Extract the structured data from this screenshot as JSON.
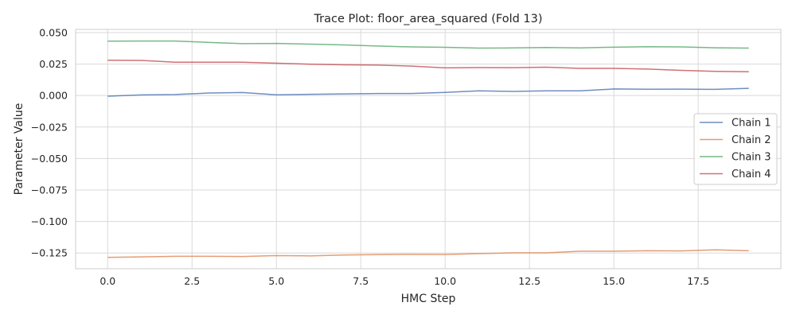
{
  "chart_data": {
    "type": "line",
    "title": "Trace Plot: floor_area_squared (Fold 13)",
    "xlabel": "HMC Step",
    "ylabel": "Parameter Value",
    "xlim": [
      -0.95,
      19.95
    ],
    "ylim": [
      -0.1375,
      0.0525
    ],
    "xticks": [
      0.0,
      2.5,
      5.0,
      7.5,
      10.0,
      12.5,
      15.0,
      17.5
    ],
    "xtick_labels": [
      "0.0",
      "2.5",
      "5.0",
      "7.5",
      "10.0",
      "12.5",
      "15.0",
      "17.5"
    ],
    "yticks": [
      0.05,
      0.025,
      0.0,
      -0.025,
      -0.05,
      -0.075,
      -0.1,
      -0.125
    ],
    "ytick_labels": [
      "0.050",
      "0.025",
      "0.000",
      "−0.025",
      "−0.050",
      "−0.075",
      "−0.100",
      "−0.125"
    ],
    "grid": true,
    "legend_position": "center-right",
    "x": [
      0,
      1,
      2,
      3,
      4,
      5,
      6,
      7,
      8,
      9,
      10,
      11,
      12,
      13,
      14,
      15,
      16,
      17,
      18,
      19
    ],
    "series": [
      {
        "name": "Chain 1",
        "color": "#4c72b0",
        "values": [
          -0.0005,
          0.0005,
          0.0008,
          0.002,
          0.0024,
          0.0006,
          0.001,
          0.0013,
          0.0016,
          0.0016,
          0.0025,
          0.0037,
          0.0033,
          0.0037,
          0.0037,
          0.0052,
          0.005,
          0.0051,
          0.0049,
          0.0057
        ]
      },
      {
        "name": "Chain 2",
        "color": "#dd8452",
        "values": [
          -0.1285,
          -0.1281,
          -0.1276,
          -0.1276,
          -0.1278,
          -0.1271,
          -0.1273,
          -0.1266,
          -0.1263,
          -0.1261,
          -0.1262,
          -0.1255,
          -0.1249,
          -0.1249,
          -0.1236,
          -0.1236,
          -0.1232,
          -0.1234,
          -0.1225,
          -0.1232
        ]
      },
      {
        "name": "Chain 3",
        "color": "#55a868",
        "values": [
          0.0432,
          0.0433,
          0.0433,
          0.0422,
          0.0412,
          0.0414,
          0.0408,
          0.0402,
          0.0393,
          0.0386,
          0.0383,
          0.0377,
          0.0378,
          0.0381,
          0.0378,
          0.0384,
          0.0388,
          0.0386,
          0.0379,
          0.0377
        ]
      },
      {
        "name": "Chain 4",
        "color": "#c44e52",
        "values": [
          0.028,
          0.0279,
          0.0265,
          0.0265,
          0.0265,
          0.0257,
          0.0249,
          0.0244,
          0.0242,
          0.0234,
          0.022,
          0.0222,
          0.0221,
          0.0225,
          0.0216,
          0.0216,
          0.021,
          0.02,
          0.0192,
          0.0189
        ]
      }
    ]
  }
}
